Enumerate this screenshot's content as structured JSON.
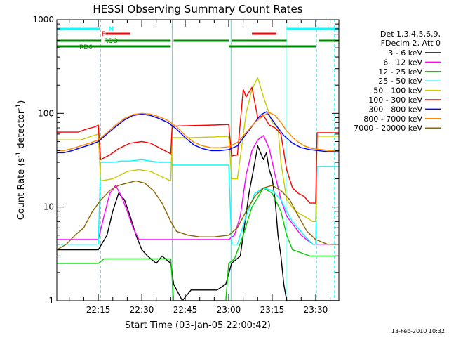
{
  "chart_data": {
    "type": "line",
    "title": "HESSI Observing Summary Count Rates",
    "xlabel": "Start Time (03-Jan-05 22:00:42)",
    "ylabel": "Count Rate (s",
    "ylabel_sup1": "-1",
    "ylabel_mid": " detector",
    "ylabel_sup2": "-1",
    "ylabel_end": ")",
    "y_scale": "log",
    "ylim": [
      1,
      1000
    ],
    "xlim_minutes": [
      0.7,
      98
    ],
    "x_ticks": [
      {
        "label": "22:15",
        "min": 15
      },
      {
        "label": "22:30",
        "min": 30
      },
      {
        "label": "22:45",
        "min": 45
      },
      {
        "label": "23:00",
        "min": 60
      },
      {
        "label": "23:15",
        "min": 75
      },
      {
        "label": "23:30",
        "min": 90
      }
    ],
    "y_ticks": [
      {
        "label": "1",
        "value": 1
      },
      {
        "label": "10",
        "value": 10
      },
      {
        "label": "100",
        "value": 100
      },
      {
        "label": "1000",
        "value": 1000
      }
    ],
    "legend_header": [
      "Det 1,3,4,5,6,9,",
      "FDecim 2, Att 0"
    ],
    "legend_position": "right",
    "footer": "13-Feb-2010 10:32",
    "series": [
      {
        "name": "3 - 6 keV",
        "color": "#000000",
        "points": [
          [
            0.7,
            3.5
          ],
          [
            15,
            3.5
          ],
          [
            18,
            5
          ],
          [
            20,
            9
          ],
          [
            22,
            14
          ],
          [
            24,
            12
          ],
          [
            26,
            8
          ],
          [
            28,
            5
          ],
          [
            30,
            3.5
          ],
          [
            32,
            3
          ],
          [
            35,
            2.5
          ],
          [
            37,
            3
          ],
          [
            40,
            2.5
          ],
          [
            41,
            1.5
          ],
          [
            44,
            1
          ],
          [
            47,
            1.3
          ],
          [
            50,
            1.3
          ],
          [
            53,
            1.3
          ],
          [
            56,
            1.3
          ],
          [
            59,
            1.5
          ],
          [
            61,
            2.5
          ],
          [
            64,
            3
          ],
          [
            67,
            14
          ],
          [
            69,
            30
          ],
          [
            70,
            45
          ],
          [
            71,
            38
          ],
          [
            72,
            32
          ],
          [
            73,
            38
          ],
          [
            74,
            25
          ],
          [
            75,
            20
          ],
          [
            76,
            12
          ],
          [
            77,
            5
          ],
          [
            78,
            3
          ],
          [
            79,
            1.5
          ],
          [
            80,
            1
          ],
          [
            98,
            1
          ]
        ]
      },
      {
        "name": "6 - 12 keV",
        "color": "#ff00ff",
        "points": [
          [
            0.7,
            4.5
          ],
          [
            15,
            4.5
          ],
          [
            17,
            8
          ],
          [
            19,
            14
          ],
          [
            21,
            17
          ],
          [
            23,
            13
          ],
          [
            25,
            9
          ],
          [
            27,
            6
          ],
          [
            29,
            4.5
          ],
          [
            35,
            4.5
          ],
          [
            60,
            4.5
          ],
          [
            62,
            5
          ],
          [
            64,
            8
          ],
          [
            66,
            22
          ],
          [
            68,
            40
          ],
          [
            70,
            52
          ],
          [
            72,
            58
          ],
          [
            74,
            42
          ],
          [
            76,
            22
          ],
          [
            78,
            12
          ],
          [
            80,
            8
          ],
          [
            85,
            5
          ],
          [
            89,
            4
          ],
          [
            98,
            4
          ]
        ]
      },
      {
        "name": "12 - 25 keV",
        "color": "#00cc00",
        "points": [
          [
            0.7,
            2.5
          ],
          [
            15,
            2.5
          ],
          [
            17,
            2.8
          ],
          [
            25,
            2.8
          ],
          [
            35,
            2.8
          ],
          [
            40,
            2.8
          ],
          [
            41,
            1
          ],
          [
            59,
            1
          ],
          [
            60,
            2.5
          ],
          [
            62,
            2.8
          ],
          [
            65,
            5
          ],
          [
            68,
            10
          ],
          [
            72,
            16
          ],
          [
            75,
            14
          ],
          [
            78,
            9
          ],
          [
            80,
            5
          ],
          [
            82,
            3.5
          ],
          [
            88,
            3
          ],
          [
            98,
            3
          ]
        ]
      },
      {
        "name": "25 - 50 keV",
        "color": "#00ffff",
        "points": [
          [
            0.7,
            4
          ],
          [
            15,
            4
          ],
          [
            15.8,
            30
          ],
          [
            20,
            30
          ],
          [
            23,
            31
          ],
          [
            26,
            31
          ],
          [
            30,
            32
          ],
          [
            33,
            31
          ],
          [
            36,
            30
          ],
          [
            40,
            30
          ],
          [
            40.5,
            28
          ],
          [
            47,
            28
          ],
          [
            55,
            28
          ],
          [
            60,
            28
          ],
          [
            61,
            4
          ],
          [
            63,
            4
          ],
          [
            66,
            8
          ],
          [
            69,
            14
          ],
          [
            72,
            16
          ],
          [
            75,
            15
          ],
          [
            78,
            12
          ],
          [
            80,
            9
          ],
          [
            82,
            7
          ],
          [
            86,
            5
          ],
          [
            89,
            4
          ],
          [
            90,
            4
          ],
          [
            90.5,
            27
          ],
          [
            98,
            27
          ]
        ]
      },
      {
        "name": "50 - 100 keV",
        "color": "#cccc00",
        "points": [
          [
            0.7,
            52
          ],
          [
            9,
            52
          ],
          [
            12,
            56
          ],
          [
            15,
            60
          ],
          [
            15.8,
            19
          ],
          [
            20,
            20
          ],
          [
            25,
            24
          ],
          [
            29,
            25
          ],
          [
            33,
            24
          ],
          [
            37,
            21
          ],
          [
            40,
            19
          ],
          [
            40.5,
            55
          ],
          [
            47,
            55
          ],
          [
            55,
            56
          ],
          [
            60,
            57
          ],
          [
            61,
            20
          ],
          [
            63,
            20
          ],
          [
            66,
            100
          ],
          [
            68,
            180
          ],
          [
            70,
            240
          ],
          [
            72,
            150
          ],
          [
            75,
            80
          ],
          [
            77,
            70
          ],
          [
            78,
            30
          ],
          [
            80,
            12
          ],
          [
            83,
            9
          ],
          [
            86,
            8
          ],
          [
            89,
            7
          ],
          [
            90,
            7
          ],
          [
            90.5,
            57
          ],
          [
            98,
            57
          ]
        ]
      },
      {
        "name": "100 - 300 keV",
        "color": "#ff0000",
        "points": [
          [
            0.7,
            63
          ],
          [
            8,
            63
          ],
          [
            11,
            68
          ],
          [
            14,
            72
          ],
          [
            15,
            75
          ],
          [
            15.8,
            32
          ],
          [
            19,
            36
          ],
          [
            22,
            42
          ],
          [
            26,
            48
          ],
          [
            30,
            50
          ],
          [
            33,
            48
          ],
          [
            36,
            43
          ],
          [
            40,
            37
          ],
          [
            40.5,
            73
          ],
          [
            47,
            74
          ],
          [
            55,
            75
          ],
          [
            60,
            76
          ],
          [
            61,
            35
          ],
          [
            63,
            36
          ],
          [
            65,
            180
          ],
          [
            66,
            150
          ],
          [
            68,
            190
          ],
          [
            70,
            90
          ],
          [
            72,
            95
          ],
          [
            74,
            75
          ],
          [
            76,
            70
          ],
          [
            78,
            60
          ],
          [
            80,
            25
          ],
          [
            82,
            16
          ],
          [
            84,
            14
          ],
          [
            86,
            13
          ],
          [
            88,
            11
          ],
          [
            89,
            11
          ],
          [
            90,
            11
          ],
          [
            90.5,
            62
          ],
          [
            98,
            62
          ]
        ]
      },
      {
        "name": "300 - 800 keV",
        "color": "#0000ff",
        "points": [
          [
            0.7,
            38
          ],
          [
            3,
            38
          ],
          [
            6,
            40
          ],
          [
            9,
            43
          ],
          [
            12,
            46
          ],
          [
            15,
            50
          ],
          [
            18,
            60
          ],
          [
            21,
            72
          ],
          [
            24,
            85
          ],
          [
            27,
            95
          ],
          [
            30,
            98
          ],
          [
            33,
            95
          ],
          [
            36,
            88
          ],
          [
            39,
            80
          ],
          [
            42,
            68
          ],
          [
            45,
            55
          ],
          [
            48,
            46
          ],
          [
            51,
            42
          ],
          [
            54,
            40
          ],
          [
            57,
            40
          ],
          [
            60,
            41
          ],
          [
            63,
            45
          ],
          [
            66,
            60
          ],
          [
            69,
            80
          ],
          [
            71,
            96
          ],
          [
            73,
            104
          ],
          [
            75,
            85
          ],
          [
            77,
            70
          ],
          [
            79,
            58
          ],
          [
            82,
            48
          ],
          [
            85,
            43
          ],
          [
            88,
            41
          ],
          [
            91,
            40
          ],
          [
            94,
            39
          ],
          [
            98,
            39
          ]
        ]
      },
      {
        "name": "800 - 7000 keV",
        "color": "#ff8800",
        "points": [
          [
            0.7,
            40
          ],
          [
            3,
            40
          ],
          [
            6,
            42
          ],
          [
            9,
            45
          ],
          [
            12,
            48
          ],
          [
            15,
            52
          ],
          [
            18,
            62
          ],
          [
            21,
            75
          ],
          [
            24,
            88
          ],
          [
            27,
            97
          ],
          [
            30,
            100
          ],
          [
            33,
            98
          ],
          [
            36,
            92
          ],
          [
            39,
            84
          ],
          [
            42,
            72
          ],
          [
            45,
            58
          ],
          [
            48,
            49
          ],
          [
            51,
            45
          ],
          [
            54,
            43
          ],
          [
            57,
            43
          ],
          [
            60,
            44
          ],
          [
            63,
            49
          ],
          [
            66,
            62
          ],
          [
            69,
            80
          ],
          [
            72,
            95
          ],
          [
            74,
            102
          ],
          [
            76,
            95
          ],
          [
            78,
            80
          ],
          [
            80,
            65
          ],
          [
            83,
            52
          ],
          [
            86,
            45
          ],
          [
            89,
            42
          ],
          [
            92,
            41
          ],
          [
            95,
            40
          ],
          [
            98,
            40
          ]
        ]
      },
      {
        "name": "7000 - 20000 keV",
        "color": "#886600",
        "points": [
          [
            0.7,
            3.5
          ],
          [
            4,
            4
          ],
          [
            7,
            5
          ],
          [
            10,
            6
          ],
          [
            13,
            9
          ],
          [
            16,
            12
          ],
          [
            19,
            15
          ],
          [
            22,
            17
          ],
          [
            25,
            18
          ],
          [
            28,
            19
          ],
          [
            31,
            18
          ],
          [
            34,
            15
          ],
          [
            37,
            11
          ],
          [
            40,
            7
          ],
          [
            42,
            5.5
          ],
          [
            46,
            5
          ],
          [
            50,
            4.8
          ],
          [
            55,
            4.8
          ],
          [
            60,
            5
          ],
          [
            63,
            6
          ],
          [
            66,
            9
          ],
          [
            69,
            13
          ],
          [
            72,
            16
          ],
          [
            75,
            17
          ],
          [
            78,
            15
          ],
          [
            81,
            12
          ],
          [
            84,
            8
          ],
          [
            87,
            5.5
          ],
          [
            90,
            4.5
          ],
          [
            94,
            4
          ],
          [
            98,
            4
          ]
        ]
      }
    ],
    "status_bars": [
      {
        "name": "N",
        "color": "#00ffff",
        "ranges": [
          [
            0.7,
            15.5
          ],
          [
            80,
            98
          ]
        ]
      },
      {
        "name": "F",
        "color": "#ff0000",
        "ranges": [
          [
            17.5,
            26
          ],
          [
            68,
            76.5
          ]
        ]
      },
      {
        "name": "RDO",
        "color": "#008800",
        "ranges": [
          [
            0.7,
            16
          ],
          [
            17.5,
            40
          ],
          [
            41,
            60
          ],
          [
            61,
            80
          ],
          [
            91,
            98
          ]
        ]
      },
      {
        "name": "RD6",
        "color": "#008800",
        "ranges": [
          [
            0.7,
            40
          ],
          [
            60,
            90
          ]
        ]
      }
    ],
    "vertical_markers": [
      {
        "min": 0.7,
        "color": "#00ffff",
        "style": "solid"
      },
      {
        "min": 15.8,
        "color": "#00ffff",
        "style": "dashed"
      },
      {
        "min": 40.5,
        "color": "#00ffff",
        "style": "solid"
      },
      {
        "min": 60.8,
        "color": "#00ffff",
        "style": "solid"
      },
      {
        "min": 79.8,
        "color": "#00ffff",
        "style": "solid"
      },
      {
        "min": 90.3,
        "color": "#00ffff",
        "style": "dashed"
      },
      {
        "min": 96.5,
        "color": "#00ffff",
        "style": "dashed"
      }
    ]
  }
}
